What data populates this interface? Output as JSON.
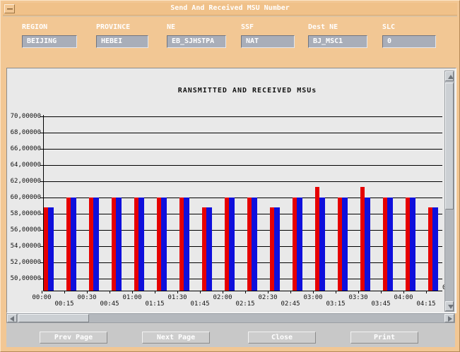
{
  "window": {
    "title": "Send And Received MSU Number"
  },
  "form": {
    "fields": [
      {
        "label": "REGION",
        "value": "BEIJING"
      },
      {
        "label": "PROVINCE",
        "value": "HEBEI"
      },
      {
        "label": "NE",
        "value": "EB_SJHSTPA"
      },
      {
        "label": "SSF",
        "value": "NAT"
      },
      {
        "label": "Dest NE",
        "value": "BJ_MSC1"
      },
      {
        "label": "SLC",
        "value": "0"
      }
    ]
  },
  "chart_data": {
    "type": "bar",
    "title": "RANSMITTED AND RECEIVED MSUs",
    "categories": [
      "00:00",
      "00:15",
      "00:30",
      "00:45",
      "01:00",
      "01:15",
      "01:30",
      "01:45",
      "02:00",
      "02:15",
      "02:30",
      "02:45",
      "03:00",
      "03:15",
      "03:30",
      "03:45",
      "04:00",
      "04:15"
    ],
    "series": [
      {
        "name": "transmitted",
        "color": "#e60000",
        "values": [
          58.8,
          60,
          60,
          60,
          60,
          60,
          60,
          58.8,
          60,
          60,
          58.8,
          60,
          61.3,
          60,
          61.3,
          60,
          60,
          58.8
        ]
      },
      {
        "name": "received",
        "color": "#0f0fdc",
        "values": [
          58.8,
          60,
          60,
          60,
          60,
          60,
          60,
          58.8,
          60,
          60,
          58.8,
          60,
          60,
          60,
          60,
          60,
          60,
          58.8
        ]
      }
    ],
    "y_tick_labels": [
      "70,00000",
      "68,00000",
      "66,00000",
      "64,00000",
      "62,00000",
      "60,00000",
      "58,00000",
      "56,00000",
      "54,00000",
      "52,00000",
      "50,00000"
    ],
    "y_tick_values": [
      70,
      68,
      66,
      64,
      62,
      60,
      58,
      56,
      54,
      52,
      50
    ],
    "ylim": [
      50,
      70
    ],
    "xlabel": "",
    "ylabel": "",
    "grid": "horizontal",
    "legend": "none",
    "x_overflow_label": "0"
  },
  "buttons": [
    {
      "label": "Prev Page"
    },
    {
      "label": "Next Page"
    },
    {
      "label": "Close"
    },
    {
      "label": "Print"
    }
  ]
}
